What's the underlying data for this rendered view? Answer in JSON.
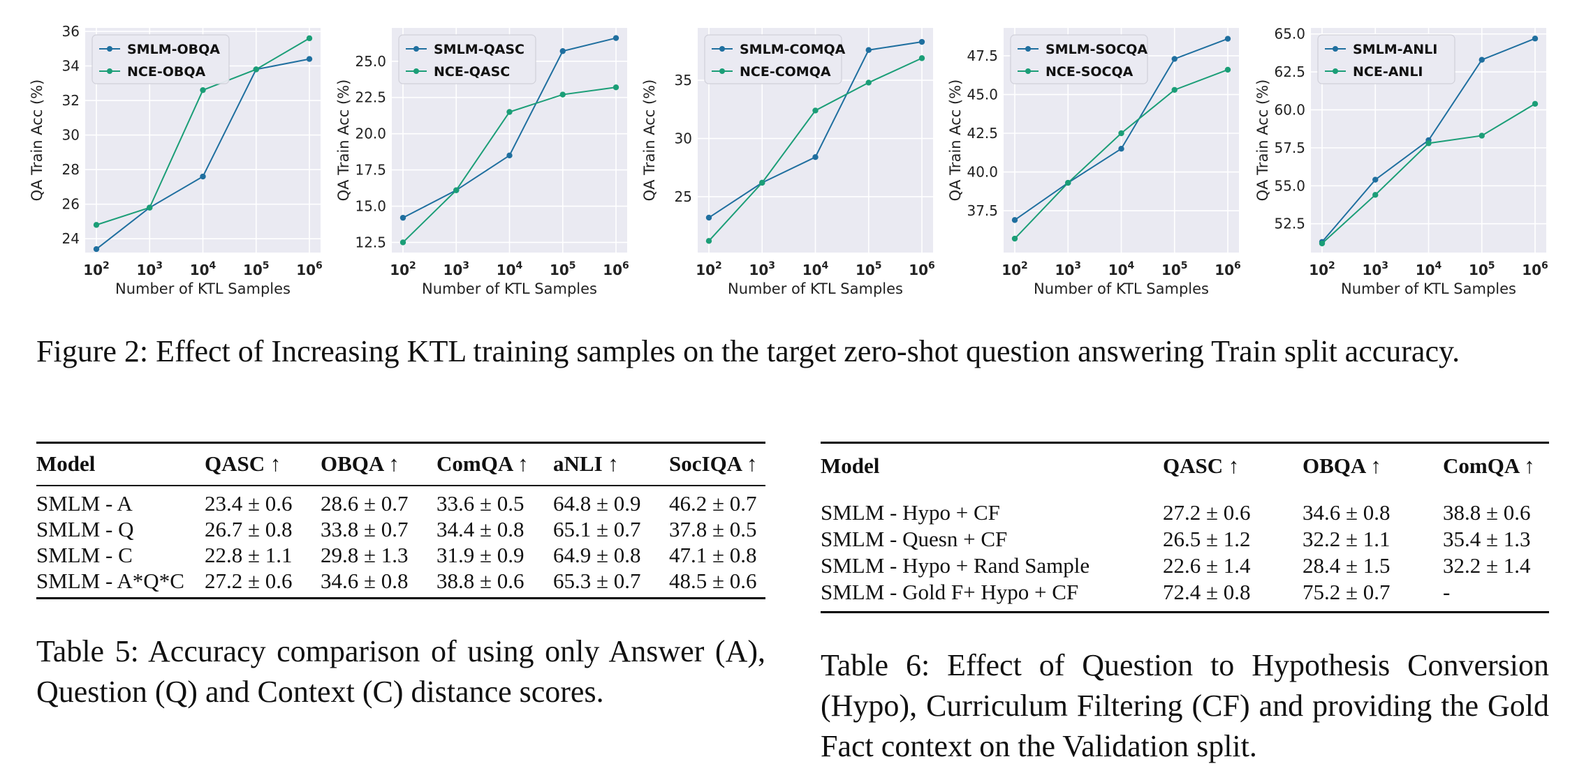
{
  "figure": {
    "caption": "Figure 2: Effect of Increasing KTL training samples on the target zero-shot question answering Train split accuracy.",
    "colors": {
      "smlm": "#1f6f9f",
      "nce": "#1b9e77",
      "panel_bg": "#eaeaf2",
      "grid": "#ffffff"
    }
  },
  "chart_data": [
    {
      "type": "line",
      "x": [
        "10^2",
        "10^3",
        "10^4",
        "10^5",
        "10^6"
      ],
      "xlabel": "Number of KTL Samples",
      "ylabel": "QA Train Acc (%)",
      "ylim": [
        23.2,
        36.2
      ],
      "yticks": [
        24,
        26,
        28,
        30,
        32,
        34,
        36
      ],
      "ytick_labels": [
        "24",
        "26",
        "28",
        "30",
        "32",
        "34",
        "36"
      ],
      "legend_position": "top-left",
      "grid": true,
      "series": [
        {
          "name": "SMLM-OBQA",
          "color": "#1f6f9f",
          "values": [
            23.4,
            25.8,
            27.6,
            33.8,
            34.4
          ]
        },
        {
          "name": "NCE-OBQA",
          "color": "#1b9e77",
          "values": [
            24.8,
            25.8,
            32.6,
            33.8,
            35.6
          ]
        }
      ]
    },
    {
      "type": "line",
      "x": [
        "10^2",
        "10^3",
        "10^4",
        "10^5",
        "10^6"
      ],
      "xlabel": "Number of KTL Samples",
      "ylabel": "QA Train Acc (%)",
      "ylim": [
        11.8,
        27.3
      ],
      "yticks": [
        12.5,
        15.0,
        17.5,
        20.0,
        22.5,
        25.0
      ],
      "ytick_labels": [
        "12.5",
        "15.0",
        "17.5",
        "20.0",
        "22.5",
        "25.0"
      ],
      "legend_position": "top-left",
      "grid": true,
      "series": [
        {
          "name": "SMLM-QASC",
          "color": "#1f6f9f",
          "values": [
            14.2,
            16.1,
            18.5,
            25.7,
            26.6
          ]
        },
        {
          "name": "NCE-QASC",
          "color": "#1b9e77",
          "values": [
            12.5,
            16.1,
            21.5,
            22.7,
            23.2
          ]
        }
      ]
    },
    {
      "type": "line",
      "x": [
        "10^2",
        "10^3",
        "10^4",
        "10^5",
        "10^6"
      ],
      "xlabel": "Number of KTL Samples",
      "ylabel": "QA Train Acc (%)",
      "ylim": [
        20.2,
        39.5
      ],
      "yticks": [
        25,
        30,
        35
      ],
      "ytick_labels": [
        "25",
        "30",
        "35"
      ],
      "legend_position": "top-left",
      "grid": true,
      "series": [
        {
          "name": "SMLM-COMQA",
          "color": "#1f6f9f",
          "values": [
            23.2,
            26.2,
            28.4,
            37.6,
            38.3
          ]
        },
        {
          "name": "NCE-COMQA",
          "color": "#1b9e77",
          "values": [
            21.2,
            26.2,
            32.4,
            34.8,
            36.9
          ]
        }
      ]
    },
    {
      "type": "line",
      "x": [
        "10^2",
        "10^3",
        "10^4",
        "10^5",
        "10^6"
      ],
      "xlabel": "Number of KTL Samples",
      "ylabel": "QA Train Acc (%)",
      "ylim": [
        34.8,
        49.3
      ],
      "yticks": [
        37.5,
        40.0,
        42.5,
        45.0,
        47.5
      ],
      "ytick_labels": [
        "37.5",
        "40.0",
        "42.5",
        "45.0",
        "47.5"
      ],
      "legend_position": "top-left",
      "grid": true,
      "series": [
        {
          "name": "SMLM-SOCQA",
          "color": "#1f6f9f",
          "values": [
            36.9,
            39.3,
            41.5,
            47.3,
            48.6
          ]
        },
        {
          "name": "NCE-SOCQA",
          "color": "#1b9e77",
          "values": [
            35.7,
            39.3,
            42.5,
            45.3,
            46.6
          ]
        }
      ]
    },
    {
      "type": "line",
      "x": [
        "10^2",
        "10^3",
        "10^4",
        "10^5",
        "10^6"
      ],
      "xlabel": "Number of KTL Samples",
      "ylabel": "QA Train Acc (%)",
      "ylim": [
        50.6,
        65.4
      ],
      "yticks": [
        52.5,
        55.0,
        57.5,
        60.0,
        62.5,
        65.0
      ],
      "ytick_labels": [
        "52.5",
        "55.0",
        "57.5",
        "60.0",
        "62.5",
        "65.0"
      ],
      "legend_position": "top-left",
      "grid": true,
      "series": [
        {
          "name": "SMLM-ANLI",
          "color": "#1f6f9f",
          "values": [
            51.3,
            55.4,
            58.0,
            63.3,
            64.7
          ]
        },
        {
          "name": "NCE-ANLI",
          "color": "#1b9e77",
          "values": [
            51.2,
            54.4,
            57.8,
            58.3,
            60.4
          ]
        }
      ]
    }
  ],
  "table5": {
    "headers": [
      "Model",
      "QASC ↑",
      "OBQA ↑",
      "ComQA ↑",
      "aNLI ↑",
      "SocIQA ↑"
    ],
    "rows": [
      [
        "SMLM - A",
        "23.4 ± 0.6",
        "28.6 ± 0.7",
        "33.6 ± 0.5",
        "64.8 ± 0.9",
        "46.2 ± 0.7"
      ],
      [
        "SMLM - Q",
        "26.7 ± 0.8",
        "33.8 ± 0.7",
        "34.4 ± 0.8",
        "65.1 ± 0.7",
        "37.8 ± 0.5"
      ],
      [
        "SMLM - C",
        "22.8 ± 1.1",
        "29.8 ± 1.3",
        "31.9 ± 0.9",
        "64.9 ± 0.8",
        "47.1 ± 0.8"
      ],
      [
        "SMLM - A*Q*C",
        "27.2 ± 0.6",
        "34.6 ± 0.8",
        "38.8 ± 0.6",
        "65.3 ± 0.7",
        "48.5 ± 0.6"
      ]
    ],
    "caption": "Table 5: Accuracy comparison of using only Answer (A), Question (Q) and Context (C) distance scores."
  },
  "table6": {
    "headers": [
      "Model",
      "QASC ↑",
      "OBQA ↑",
      "ComQA ↑"
    ],
    "rows": [
      [
        "SMLM - Hypo + CF",
        "27.2 ± 0.6",
        "34.6 ± 0.8",
        "38.8 ± 0.6"
      ],
      [
        "SMLM - Quesn + CF",
        "26.5 ± 1.2",
        "32.2 ± 1.1",
        "35.4 ± 1.3"
      ],
      [
        "SMLM - Hypo + Rand Sample",
        "22.6 ± 1.4",
        "28.4 ± 1.5",
        "32.2 ± 1.4"
      ],
      [
        "SMLM - Gold F+ Hypo + CF",
        "72.4 ± 0.8",
        "75.2 ± 0.7",
        "-"
      ]
    ],
    "caption": "Table 6: Effect of Question to Hypothesis Conversion (Hypo), Curriculum Filtering (CF) and providing the Gold Fact context on the Validation split."
  }
}
